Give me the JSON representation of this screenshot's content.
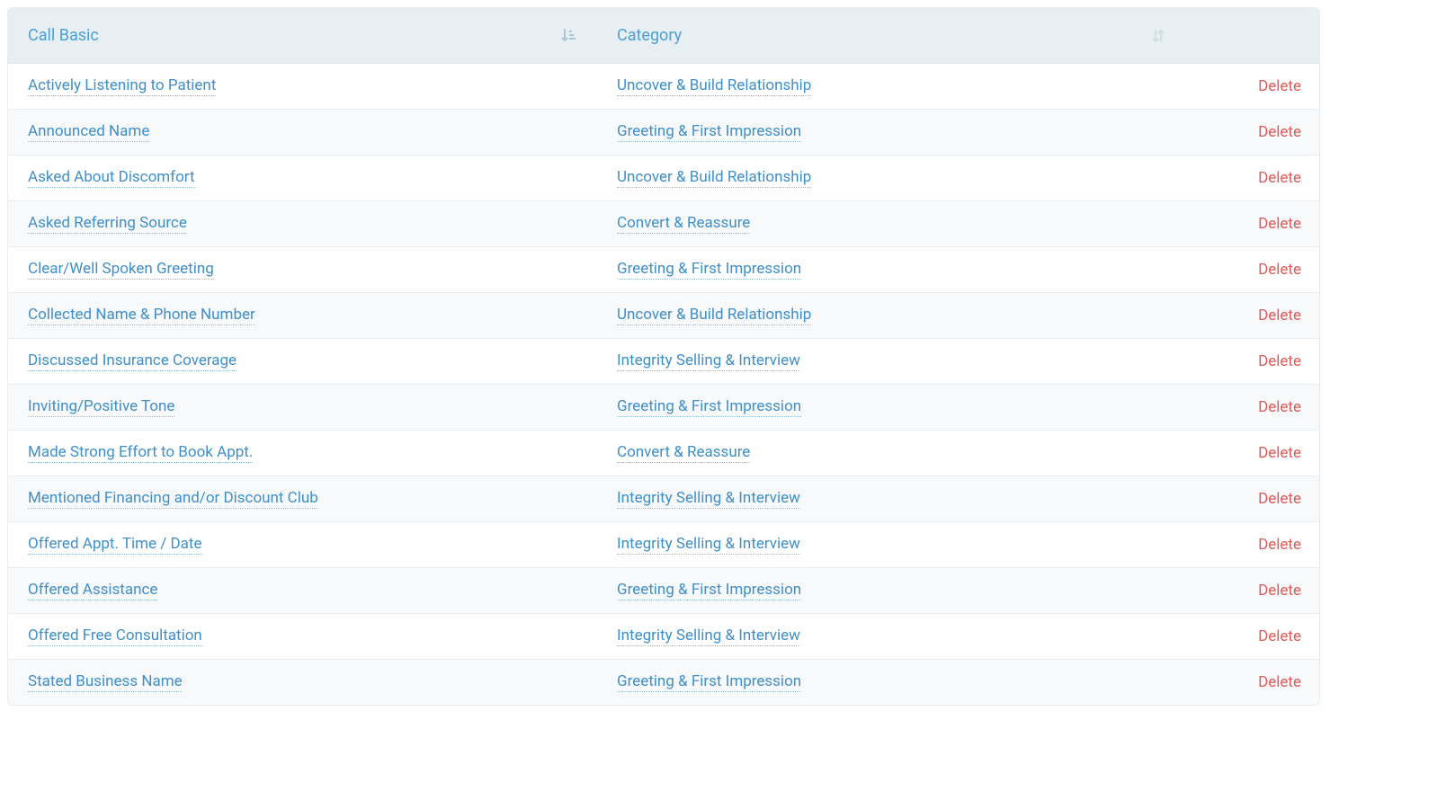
{
  "table": {
    "columns": {
      "call_basic": {
        "label": "Call Basic",
        "sort_state": "asc-active",
        "sort_icon_color": "#a9c7d6"
      },
      "category": {
        "label": "Category",
        "sort_state": "inactive",
        "sort_icon_color": "#cfdfe6"
      }
    },
    "delete_label": "Delete",
    "rows": [
      {
        "name": "Actively Listening to Patient",
        "category": "Uncover & Build Relationship"
      },
      {
        "name": "Announced Name",
        "category": "Greeting & First Impression"
      },
      {
        "name": "Asked About Discomfort",
        "category": "Uncover & Build Relationship"
      },
      {
        "name": "Asked Referring Source",
        "category": "Convert & Reassure"
      },
      {
        "name": "Clear/Well Spoken Greeting",
        "category": "Greeting & First Impression"
      },
      {
        "name": "Collected Name & Phone Number",
        "category": "Uncover & Build Relationship"
      },
      {
        "name": "Discussed Insurance Coverage",
        "category": "Integrity Selling & Interview"
      },
      {
        "name": "Inviting/Positive Tone",
        "category": "Greeting & First Impression"
      },
      {
        "name": "Made Strong Effort to Book Appt.",
        "category": "Convert & Reassure"
      },
      {
        "name": "Mentioned Financing and/or Discount Club",
        "category": "Integrity Selling & Interview"
      },
      {
        "name": "Offered Appt. Time / Date",
        "category": "Integrity Selling & Interview"
      },
      {
        "name": "Offered Assistance",
        "category": "Greeting & First Impression"
      },
      {
        "name": "Offered Free Consultation",
        "category": "Integrity Selling & Interview"
      },
      {
        "name": "Stated Business Name",
        "category": "Greeting & First Impression"
      }
    ]
  },
  "colors": {
    "header_bg": "#e8eff2",
    "header_text": "#4a9fd8",
    "row_even_bg": "#f7f9fa",
    "row_odd_bg": "#ffffff",
    "border": "#e6ecef",
    "link": "#3f8fc9",
    "link_underline": "#8fc0e0",
    "delete": "#e05a5a"
  }
}
